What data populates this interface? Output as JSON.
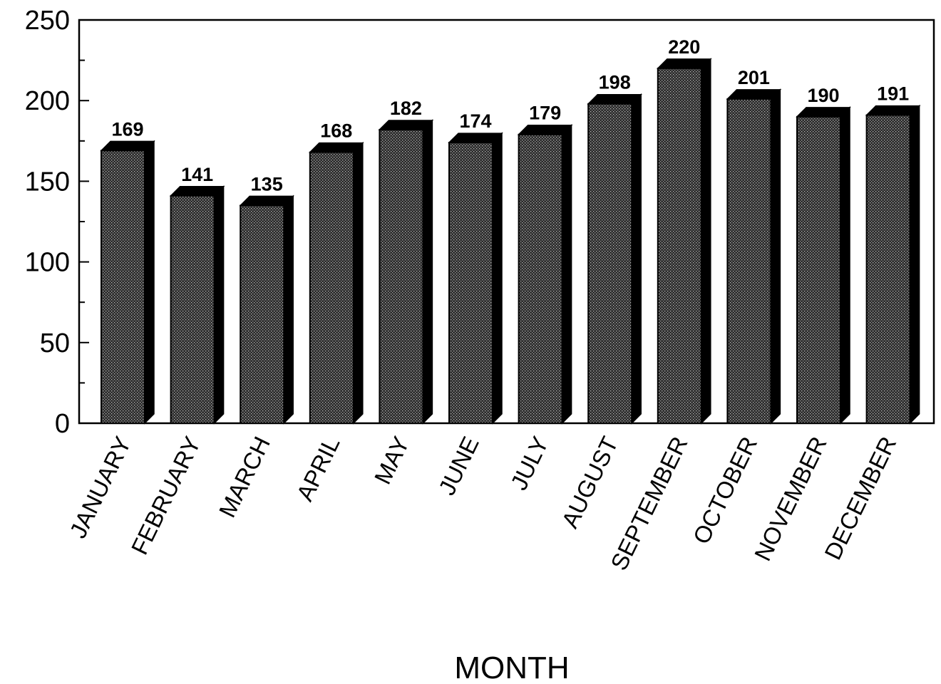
{
  "chart_data": {
    "type": "bar",
    "title": "",
    "xlabel": "MONTH",
    "ylabel": "",
    "ylim": [
      0,
      250
    ],
    "yticks": [
      "0",
      "50",
      "100",
      "150",
      "200",
      "250"
    ],
    "grid": false,
    "legend": "none",
    "bar_style": "3d-stippled",
    "categories": [
      "JANUARY",
      "FEBRUARY",
      "MARCH",
      "APRIL",
      "MAY",
      "JUNE",
      "JULY",
      "AUGUST",
      "SEPTEMBER",
      "OCTOBER",
      "NOVEMBER",
      "DECEMBER"
    ],
    "values": [
      169,
      141,
      135,
      168,
      182,
      174,
      179,
      198,
      220,
      201,
      190,
      191
    ],
    "value_labels": [
      "169",
      "141",
      "135",
      "168",
      "182",
      "174",
      "179",
      "198",
      "220",
      "201",
      "190",
      "191"
    ]
  },
  "colors": {
    "bar_face": "#2b2b2b",
    "bar_side": "#000000",
    "stipple": "#bdbdbd",
    "axis": "#000000"
  }
}
